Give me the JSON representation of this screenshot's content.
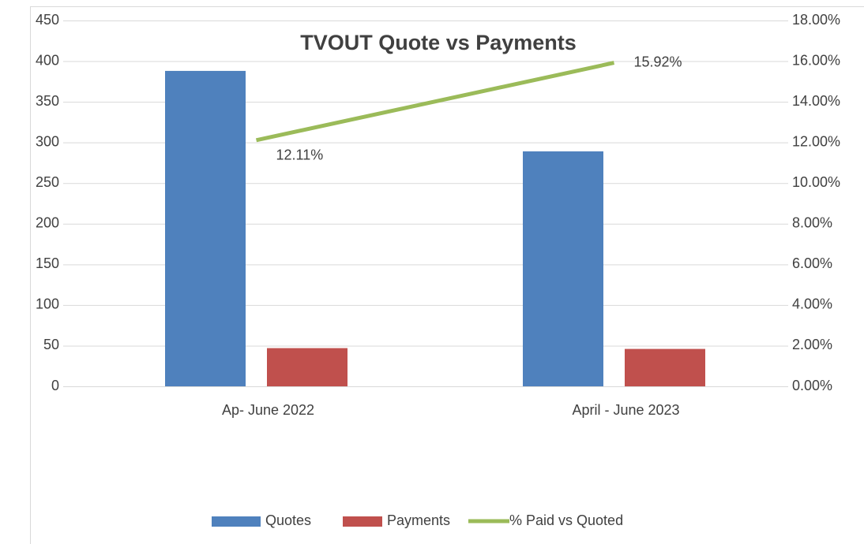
{
  "chart_data": {
    "type": "bar",
    "title": "TVOUT Quote vs Payments",
    "categories": [
      "Ap- June 2022",
      "April - June 2023"
    ],
    "series": [
      {
        "name": "Quotes",
        "color": "#4f81bd",
        "values": [
          388,
          289
        ]
      },
      {
        "name": "Payments",
        "color": "#c0504d",
        "values": [
          47,
          46
        ]
      },
      {
        "name": "% Paid vs Quoted",
        "color": "#9bbb59",
        "type": "line",
        "axis": "y2",
        "values": [
          12.11,
          15.92
        ],
        "value_labels": [
          "12.11%",
          "15.92%"
        ]
      }
    ],
    "ylim": [
      0,
      450
    ],
    "yticks": [
      0,
      50,
      100,
      150,
      200,
      250,
      300,
      350,
      400,
      450
    ],
    "y2lim": [
      0,
      18
    ],
    "y2ticks": [
      {
        "value": 0,
        "label": "0.00%"
      },
      {
        "value": 2,
        "label": "2.00%"
      },
      {
        "value": 4,
        "label": "4.00%"
      },
      {
        "value": 6,
        "label": "6.00%"
      },
      {
        "value": 8,
        "label": "8.00%"
      },
      {
        "value": 10,
        "label": "10.00%"
      },
      {
        "value": 12,
        "label": "12.00%"
      },
      {
        "value": 14,
        "label": "14.00%"
      },
      {
        "value": 16,
        "label": "16.00%"
      },
      {
        "value": 18,
        "label": "18.00%"
      }
    ],
    "grid": true,
    "legend": "bottom"
  }
}
